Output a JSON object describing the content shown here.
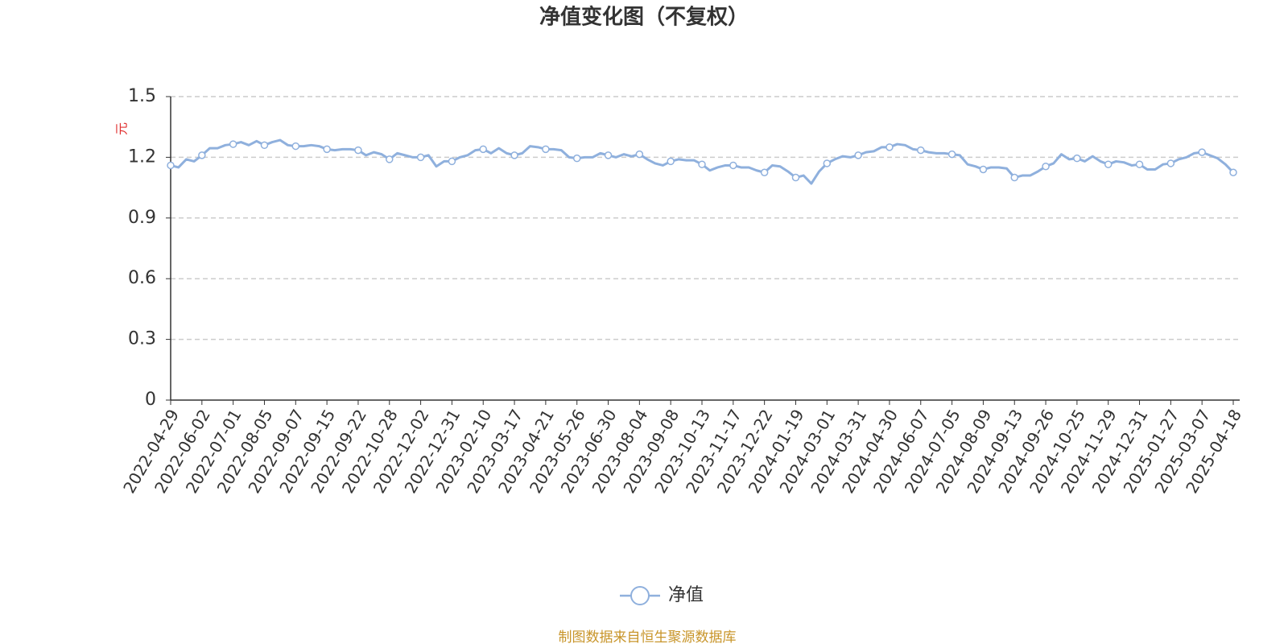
{
  "chart_data": {
    "type": "line",
    "title": "净值变化图（不复权）",
    "y_label": "元",
    "source": "制图数据来自恒生聚源数据库",
    "categories": [
      "2022-04-29",
      null,
      null,
      null,
      "2022-06-02",
      null,
      null,
      null,
      "2022-07-01",
      null,
      null,
      null,
      "2022-08-05",
      null,
      null,
      null,
      "2022-09-07",
      null,
      null,
      null,
      "2022-09-15",
      null,
      null,
      null,
      "2022-09-22",
      null,
      null,
      null,
      "2022-10-28",
      null,
      null,
      null,
      "2022-12-02",
      null,
      null,
      null,
      "2022-12-31",
      null,
      null,
      null,
      "2023-02-10",
      null,
      null,
      null,
      "2023-03-17",
      null,
      null,
      null,
      "2023-04-21",
      null,
      null,
      null,
      "2023-05-26",
      null,
      null,
      null,
      "2023-06-30",
      null,
      null,
      null,
      "2023-08-04",
      null,
      null,
      null,
      "2023-09-08",
      null,
      null,
      null,
      "2023-10-13",
      null,
      null,
      null,
      "2023-11-17",
      null,
      null,
      null,
      "2023-12-22",
      null,
      null,
      null,
      "2024-01-19",
      null,
      null,
      null,
      "2024-03-01",
      null,
      null,
      null,
      "2024-03-31",
      null,
      null,
      null,
      "2024-04-30",
      null,
      null,
      null,
      "2024-06-07",
      null,
      null,
      null,
      "2024-07-05",
      null,
      null,
      null,
      "2024-08-09",
      null,
      null,
      null,
      "2024-09-13",
      null,
      null,
      null,
      "2024-09-26",
      null,
      null,
      null,
      "2024-10-25",
      null,
      null,
      null,
      "2024-11-29",
      null,
      null,
      null,
      "2024-12-31",
      null,
      null,
      null,
      "2025-01-27",
      null,
      null,
      null,
      "2025-03-07",
      null,
      null,
      null,
      "2025-04-18"
    ],
    "series": [
      {
        "name": "净值",
        "color": "#8fb0dd",
        "values": [
          1.16,
          1.15,
          1.19,
          1.18,
          1.21,
          1.245,
          1.245,
          1.26,
          1.265,
          1.275,
          1.26,
          1.28,
          1.26,
          1.275,
          1.285,
          1.26,
          1.255,
          1.255,
          1.26,
          1.255,
          1.24,
          1.235,
          1.24,
          1.24,
          1.235,
          1.21,
          1.225,
          1.215,
          1.19,
          1.22,
          1.21,
          1.2,
          1.2,
          1.21,
          1.155,
          1.18,
          1.18,
          1.2,
          1.21,
          1.235,
          1.24,
          1.22,
          1.245,
          1.22,
          1.21,
          1.22,
          1.255,
          1.25,
          1.24,
          1.24,
          1.235,
          1.2,
          1.195,
          1.2,
          1.2,
          1.22,
          1.21,
          1.2,
          1.215,
          1.205,
          1.215,
          1.19,
          1.17,
          1.16,
          1.18,
          1.19,
          1.185,
          1.185,
          1.165,
          1.135,
          1.15,
          1.16,
          1.16,
          1.15,
          1.15,
          1.135,
          1.125,
          1.16,
          1.155,
          1.13,
          1.1,
          1.11,
          1.07,
          1.13,
          1.17,
          1.19,
          1.205,
          1.2,
          1.21,
          1.225,
          1.23,
          1.25,
          1.25,
          1.265,
          1.26,
          1.24,
          1.235,
          1.225,
          1.22,
          1.22,
          1.215,
          1.21,
          1.165,
          1.155,
          1.14,
          1.15,
          1.15,
          1.145,
          1.1,
          1.11,
          1.11,
          1.13,
          1.155,
          1.17,
          1.215,
          1.19,
          1.195,
          1.18,
          1.205,
          1.18,
          1.165,
          1.18,
          1.175,
          1.16,
          1.165,
          1.14,
          1.14,
          1.165,
          1.17,
          1.19,
          1.2,
          1.22,
          1.225,
          1.21,
          1.195,
          1.165,
          1.125
        ]
      }
    ],
    "ylim": [
      0,
      1.5
    ],
    "yticks": [
      0,
      0.3,
      0.6,
      0.9,
      1.2,
      1.5
    ],
    "grid": true
  }
}
